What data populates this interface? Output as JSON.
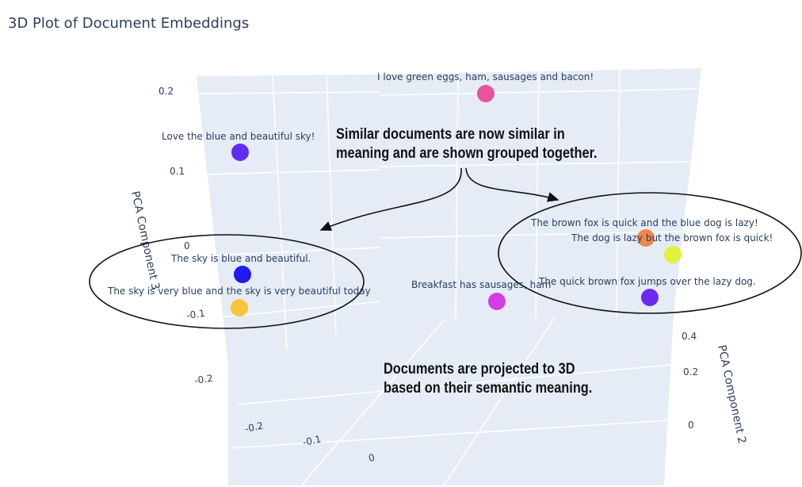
{
  "title": "3D Plot of Document Embeddings",
  "annotations": [
    {
      "lines": [
        "Similar documents are now similar in",
        "meaning and are shown grouped together."
      ]
    },
    {
      "lines": [
        "Documents are projected to 3D",
        "based on their semantic meaning."
      ]
    }
  ],
  "colors": {
    "paper": "#ffffff",
    "scene_bg": "#e5ecf6",
    "grid": "#ffffff",
    "axis_text": "#2a3f5f",
    "title": "#2a3f5f"
  },
  "chart_data": {
    "type": "scatter",
    "title": "3D Plot of Document Embeddings",
    "axes": {
      "z": {
        "label": "PCA Component 3",
        "ticks": [
          "0.2",
          "0.1",
          "0",
          "-0.1",
          "-0.2"
        ]
      },
      "y": {
        "label": "PCA Component 2",
        "ticks": [
          "0.4",
          "0.2",
          "0"
        ]
      },
      "x": {
        "label": "",
        "ticks": [
          "-0.2",
          "-0.1",
          "0"
        ]
      }
    },
    "points": [
      {
        "text": "I love green eggs, ham, sausages and bacon!",
        "color": "#e7549a"
      },
      {
        "text": "Love the blue and beautiful sky!",
        "color": "#5f2ef0"
      },
      {
        "text": "The sky is blue and beautiful.",
        "color": "#1f1af2"
      },
      {
        "text": "The sky is very blue and the sky is very beautiful today",
        "color": "#f8c43a"
      },
      {
        "text": "Breakfast has sausages, ham",
        "color": "#d33de8"
      },
      {
        "text": "The brown fox is quick and the blue dog is lazy!",
        "color": "#f1874d"
      },
      {
        "text": "The dog is lazy but the brown fox is quick!",
        "color": "#e2f13a"
      },
      {
        "text": "The quick brown fox jumps over the lazy dog.",
        "color": "#6b2aed"
      }
    ]
  }
}
